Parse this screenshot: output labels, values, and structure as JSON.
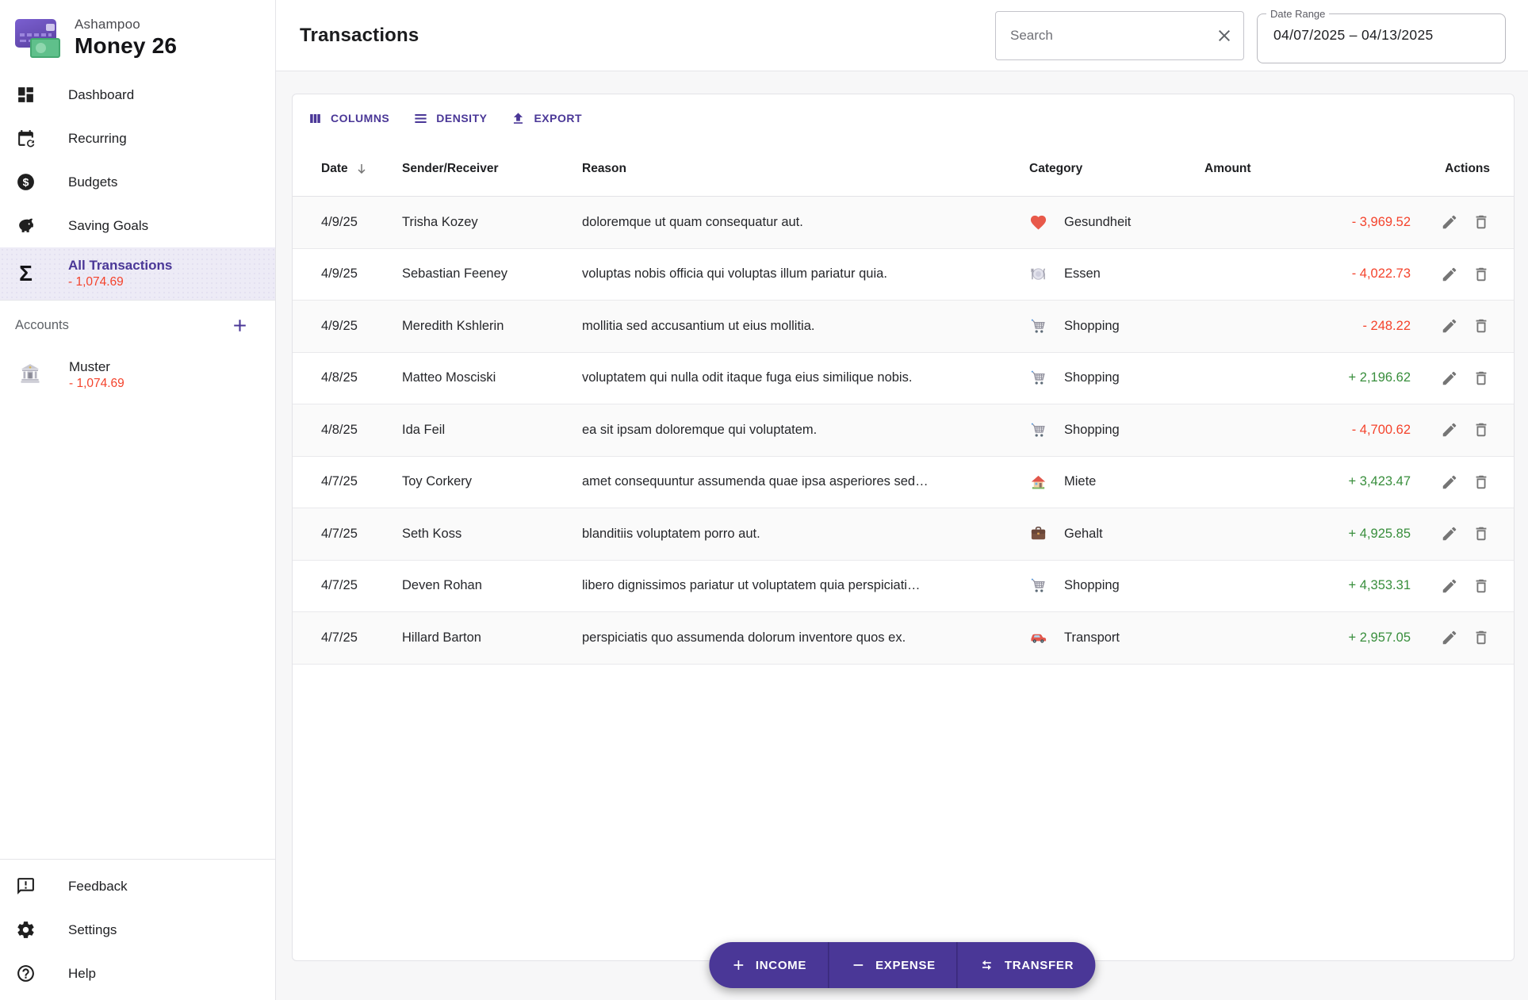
{
  "app": {
    "brand": "Ashampoo",
    "name": "Money 26"
  },
  "colors": {
    "primary": "#4a3797",
    "negative": "#f4432c",
    "positive": "#388e3c"
  },
  "sidebar": {
    "nav": [
      {
        "label": "Dashboard",
        "icon": "dashboard-icon"
      },
      {
        "label": "Recurring",
        "icon": "recurring-icon"
      },
      {
        "label": "Budgets",
        "icon": "budgets-icon"
      },
      {
        "label": "Saving Goals",
        "icon": "saving-goals-icon"
      },
      {
        "label": "All Transactions",
        "icon": "sigma-icon",
        "balance": "- 1,074.69",
        "selected": true
      }
    ],
    "accounts": {
      "header": "Accounts",
      "add_icon": "plus-icon",
      "items": [
        {
          "name": "Muster",
          "balance": "- 1,074.69",
          "icon": "bank-icon"
        }
      ]
    },
    "footer": [
      {
        "label": "Feedback",
        "icon": "feedback-icon"
      },
      {
        "label": "Settings",
        "icon": "settings-icon"
      },
      {
        "label": "Help",
        "icon": "help-icon"
      }
    ]
  },
  "header": {
    "title": "Transactions",
    "search_placeholder": "Search",
    "clear_icon": "close-icon",
    "date_range_label": "Date Range",
    "date_range_value": "04/07/2025 – 04/13/2025"
  },
  "toolbar": {
    "columns": "COLUMNS",
    "density": "DENSITY",
    "export": "EXPORT"
  },
  "table": {
    "headers": {
      "date": "Date",
      "sender": "Sender/Receiver",
      "reason": "Reason",
      "category": "Category",
      "amount": "Amount",
      "actions": "Actions"
    },
    "sort": {
      "column": "date",
      "direction": "desc",
      "icon": "arrow-down-icon"
    },
    "row_action_icons": [
      "edit-icon",
      "delete-icon"
    ],
    "rows": [
      {
        "date": "4/9/25",
        "sender": "Trisha Kozey",
        "reason": "doloremque ut quam consequatur aut.",
        "category": "Gesundheit",
        "category_icon": "heart-icon",
        "amount": "- 3,969.52",
        "type": "negative"
      },
      {
        "date": "4/9/25",
        "sender": "Sebastian Feeney",
        "reason": "voluptas nobis officia qui voluptas illum pariatur quia.",
        "category": "Essen",
        "category_icon": "dining-icon",
        "amount": "- 4,022.73",
        "type": "negative"
      },
      {
        "date": "4/9/25",
        "sender": "Meredith Kshlerin",
        "reason": "mollitia sed accusantium ut eius mollitia.",
        "category": "Shopping",
        "category_icon": "cart-icon",
        "amount": "- 248.22",
        "type": "negative"
      },
      {
        "date": "4/8/25",
        "sender": "Matteo Mosciski",
        "reason": "voluptatem qui nulla odit itaque fuga eius similique nobis.",
        "category": "Shopping",
        "category_icon": "cart-icon",
        "amount": "+ 2,196.62",
        "type": "positive"
      },
      {
        "date": "4/8/25",
        "sender": "Ida Feil",
        "reason": "ea sit ipsam doloremque qui voluptatem.",
        "category": "Shopping",
        "category_icon": "cart-icon",
        "amount": "- 4,700.62",
        "type": "negative"
      },
      {
        "date": "4/7/25",
        "sender": "Toy Corkery",
        "reason": "amet consequuntur assumenda quae ipsa asperiores sed…",
        "category": "Miete",
        "category_icon": "house-icon",
        "amount": "+ 3,423.47",
        "type": "positive"
      },
      {
        "date": "4/7/25",
        "sender": "Seth Koss",
        "reason": "blanditiis voluptatem porro aut.",
        "category": "Gehalt",
        "category_icon": "briefcase-icon",
        "amount": "+ 4,925.85",
        "type": "positive"
      },
      {
        "date": "4/7/25",
        "sender": "Deven Rohan",
        "reason": "libero dignissimos pariatur ut voluptatem quia perspiciati…",
        "category": "Shopping",
        "category_icon": "cart-icon",
        "amount": "+ 4,353.31",
        "type": "positive"
      },
      {
        "date": "4/7/25",
        "sender": "Hillard Barton",
        "reason": "perspiciatis quo assumenda dolorum inventore quos ex.",
        "category": "Transport",
        "category_icon": "car-icon",
        "amount": "+ 2,957.05",
        "type": "positive"
      }
    ]
  },
  "actions_bar": [
    {
      "label": "INCOME",
      "icon": "plus-icon"
    },
    {
      "label": "EXPENSE",
      "icon": "minus-icon"
    },
    {
      "label": "TRANSFER",
      "icon": "transfer-icon"
    }
  ]
}
